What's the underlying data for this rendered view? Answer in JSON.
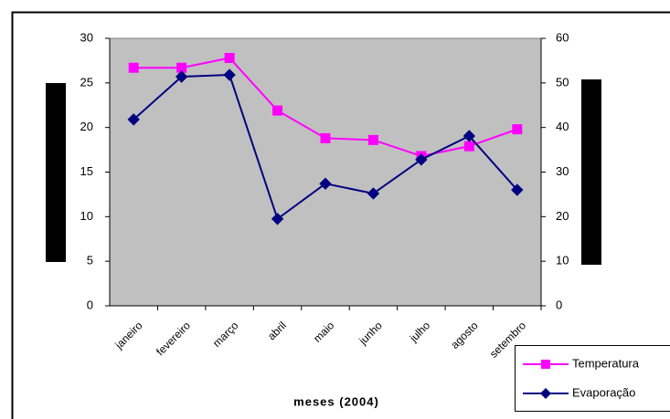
{
  "chart_data": {
    "type": "line",
    "x_label": "meses (2004)",
    "categories": [
      "janeiro",
      "fevereiro",
      "março",
      "abril",
      "maio",
      "junho",
      "julho",
      "agosto",
      "setembro"
    ],
    "series": [
      {
        "name": "Temperatura",
        "color": "#ff00ff",
        "marker": "square",
        "values": [
          26.7,
          26.7,
          27.8,
          21.9,
          18.8,
          18.6,
          16.8,
          17.9,
          19.8
        ]
      },
      {
        "name": "Evaporação",
        "color": "#000080",
        "marker": "diamond",
        "axis": "y2",
        "values": [
          41.8,
          51.4,
          51.8,
          19.5,
          27.4,
          25.2,
          32.8,
          38.1,
          26.0
        ]
      }
    ],
    "ylim": [
      0,
      30
    ],
    "yticks": [
      0,
      5,
      10,
      15,
      20,
      25,
      30
    ],
    "y2lim": [
      0,
      60
    ],
    "y2ticks": [
      0,
      10,
      20,
      30,
      40,
      50,
      60
    ],
    "plot_background": "#c0c0c0"
  }
}
